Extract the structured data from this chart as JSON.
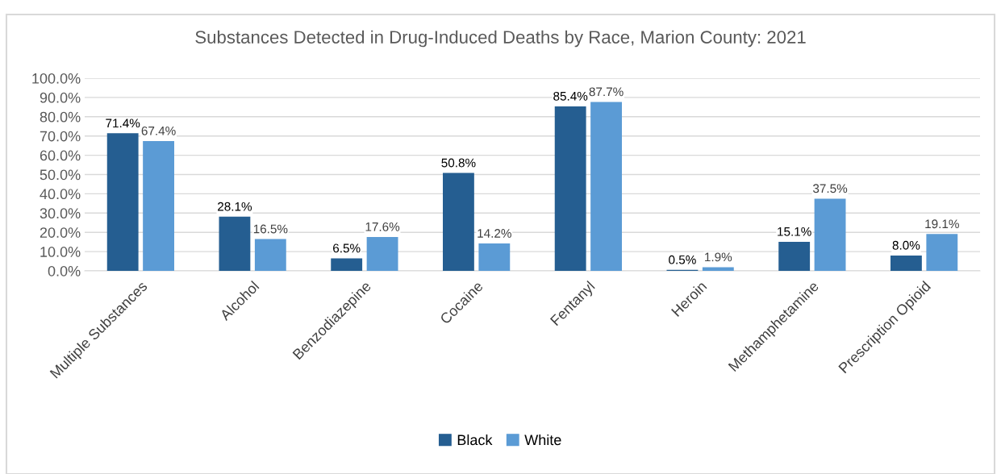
{
  "chart_data": {
    "type": "bar",
    "title": "Substances Detected in Drug-Induced Deaths by Race, Marion County: 2021",
    "categories": [
      "Multiple Substances",
      "Alcohol",
      "Benzodiazepine",
      "Cocaine",
      "Fentanyl",
      "Heroin",
      "Methamphetamine",
      "Prescription Opioid"
    ],
    "series": [
      {
        "name": "Black",
        "color": "#255e91",
        "values": [
          71.4,
          28.1,
          6.5,
          50.8,
          85.4,
          0.5,
          15.1,
          8.0
        ],
        "value_labels": [
          "71.4%",
          "28.1%",
          "6.5%",
          "50.8%",
          "85.4%",
          "0.5%",
          "15.1%",
          "8.0%"
        ]
      },
      {
        "name": "White",
        "color": "#5b9bd5",
        "values": [
          67.4,
          16.5,
          17.6,
          14.2,
          87.7,
          1.9,
          37.5,
          19.1
        ],
        "value_labels": [
          "67.4%",
          "16.5%",
          "17.6%",
          "14.2%",
          "87.7%",
          "1.9%",
          "37.5%",
          "19.1%"
        ]
      }
    ],
    "ylim": [
      0,
      100
    ],
    "yticks": [
      {
        "value": 0,
        "label": "0.0%"
      },
      {
        "value": 10,
        "label": "10.0%"
      },
      {
        "value": 20,
        "label": "20.0%"
      },
      {
        "value": 30,
        "label": "30.0%"
      },
      {
        "value": 40,
        "label": "40.0%"
      },
      {
        "value": 50,
        "label": "50.0%"
      },
      {
        "value": 60,
        "label": "60.0%"
      },
      {
        "value": 70,
        "label": "70.0%"
      },
      {
        "value": 80,
        "label": "80.0%"
      },
      {
        "value": 90,
        "label": "90.0%"
      },
      {
        "value": 100,
        "label": "100.0%"
      }
    ],
    "grid": "y",
    "legend": "bottom"
  }
}
